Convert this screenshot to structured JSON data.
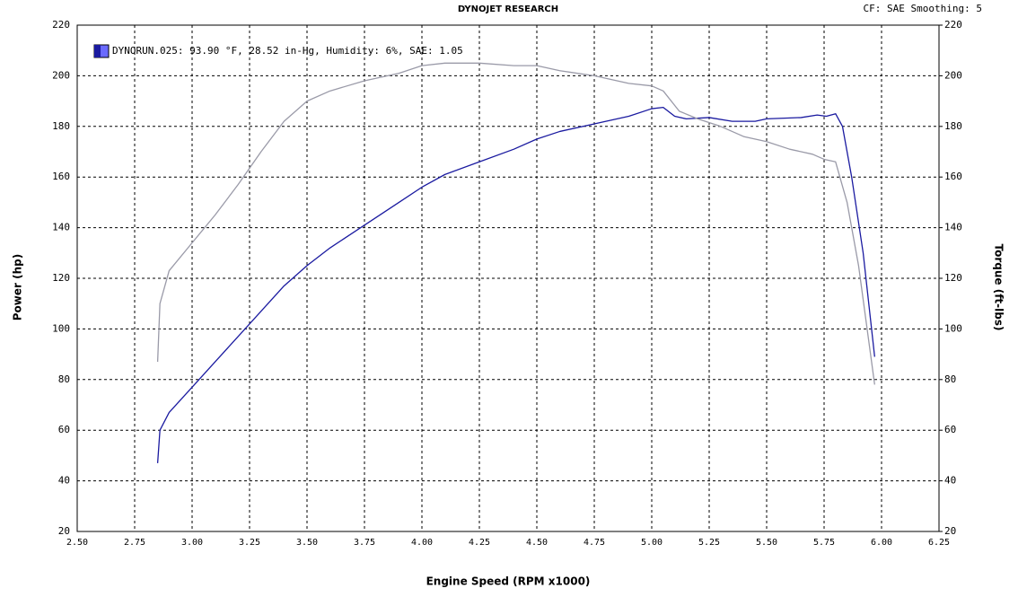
{
  "chart_data": {
    "type": "line",
    "title": "DYNOJET RESEARCH",
    "subtitle": "CF: SAE  Smoothing: 5",
    "xlabel": "Engine Speed (RPM x1000)",
    "ylabel": "Power (hp)",
    "y2label": "Torque (ft-lbs)",
    "legend": {
      "label": "DYNORUN.025: 93.90 °F, 28.52 in-Hg, Humidity: 6%, SAE: 1.05",
      "color": "#1a1aa0"
    },
    "grid": true,
    "xlim": [
      2.5,
      6.25
    ],
    "xticks": [
      {
        "value": 2.5,
        "label": "2.50"
      },
      {
        "value": 2.75,
        "label": "2.75"
      },
      {
        "value": 3,
        "label": "3.00"
      },
      {
        "value": 3.25,
        "label": "3.25"
      },
      {
        "value": 3.5,
        "label": "3.50"
      },
      {
        "value": 3.75,
        "label": "3.75"
      },
      {
        "value": 4,
        "label": "4.00"
      },
      {
        "value": 4.25,
        "label": "4.25"
      },
      {
        "value": 4.5,
        "label": "4.50"
      },
      {
        "value": 4.75,
        "label": "4.75"
      },
      {
        "value": 5,
        "label": "5.00"
      },
      {
        "value": 5.25,
        "label": "5.25"
      },
      {
        "value": 5.5,
        "label": "5.50"
      },
      {
        "value": 5.75,
        "label": "5.75"
      },
      {
        "value": 6,
        "label": "6.00"
      },
      {
        "value": 6.25,
        "label": "6.25"
      }
    ],
    "ylim": [
      20,
      220
    ],
    "yticks": [
      20,
      40,
      60,
      80,
      100,
      120,
      140,
      160,
      180,
      200,
      220
    ],
    "y2lim": [
      20,
      220
    ],
    "y2ticks": [
      20,
      40,
      60,
      80,
      100,
      120,
      140,
      160,
      180,
      200,
      220
    ],
    "series": [
      {
        "color": "#1a1aa0",
        "x": [
          2.85,
          2.86,
          2.9,
          3.0,
          3.1,
          3.25,
          3.4,
          3.5,
          3.6,
          3.75,
          3.9,
          4.0,
          4.1,
          4.25,
          4.4,
          4.5,
          4.6,
          4.75,
          4.9,
          5.0,
          5.05,
          5.1,
          5.15,
          5.25,
          5.35,
          5.45,
          5.5,
          5.65,
          5.72,
          5.76,
          5.8,
          5.83,
          5.87,
          5.92,
          5.97
        ],
        "values": [
          47,
          60,
          67,
          77,
          87,
          102,
          117,
          125,
          132,
          141,
          150,
          156,
          161,
          166,
          171,
          175,
          178,
          181,
          184,
          187,
          187.5,
          184,
          183,
          183.5,
          182,
          182,
          183,
          183.5,
          184.5,
          184,
          185,
          180,
          160,
          130,
          89
        ]
      },
      {
        "color": "#9a9aa8",
        "axis": "y2",
        "x": [
          2.85,
          2.86,
          2.9,
          3.0,
          3.1,
          3.2,
          3.3,
          3.4,
          3.5,
          3.6,
          3.75,
          3.9,
          4.0,
          4.1,
          4.25,
          4.4,
          4.5,
          4.6,
          4.75,
          4.9,
          5.0,
          5.05,
          5.12,
          5.2,
          5.3,
          5.4,
          5.5,
          5.6,
          5.7,
          5.75,
          5.8,
          5.85,
          5.9,
          5.97
        ],
        "values": [
          87,
          110,
          123,
          134,
          145,
          157,
          170,
          182,
          190,
          194,
          198,
          201,
          204,
          205,
          205,
          204,
          204,
          202,
          200,
          197,
          196,
          194,
          186,
          183,
          180,
          176,
          174,
          171,
          169,
          167,
          166,
          150,
          125,
          78
        ]
      }
    ]
  }
}
